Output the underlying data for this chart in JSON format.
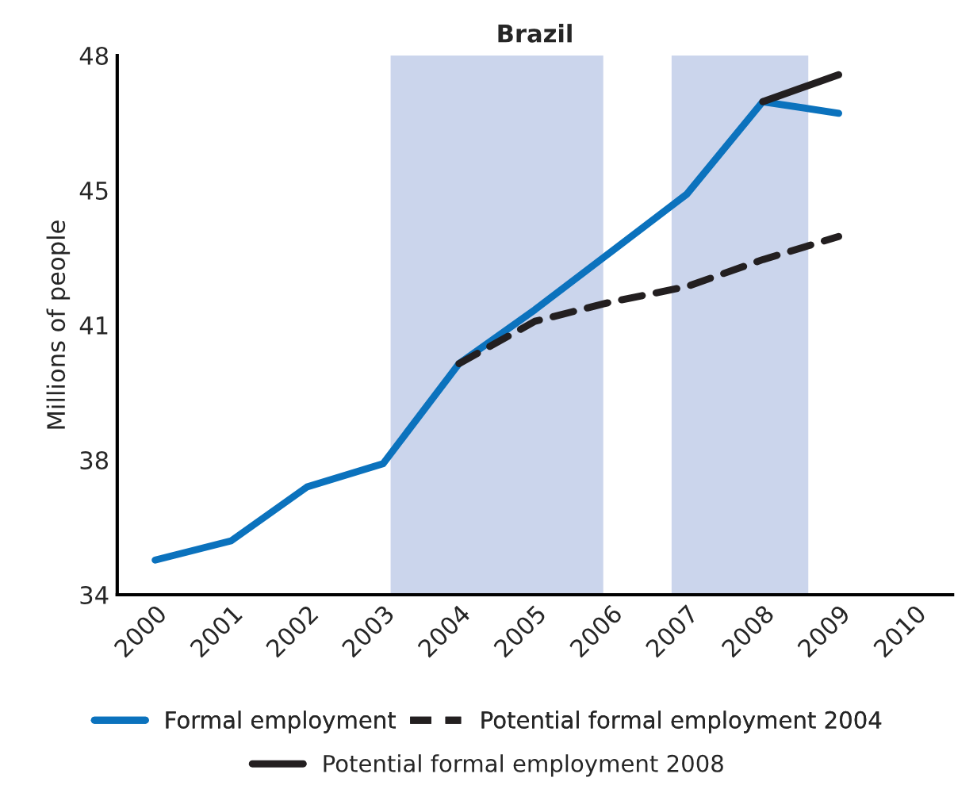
{
  "chart_data": {
    "type": "line",
    "title": "Brazil",
    "ylabel": "Millions of people",
    "xlim": [
      1999.5,
      2010.5
    ],
    "xticks": [
      2000,
      2001,
      2002,
      2003,
      2004,
      2005,
      2006,
      2007,
      2008,
      2009,
      2010
    ],
    "ylim": [
      34,
      48
    ],
    "yticks": [
      34,
      {
        "value": 37.5,
        "label": "38"
      },
      41,
      {
        "value": 44.5,
        "label": "45"
      },
      48
    ],
    "series": [
      {
        "name": "Formal employment",
        "color": "#0b72bd",
        "line_style": "solid",
        "x": [
          2000,
          2001,
          2002,
          2003,
          2004,
          2005,
          2006,
          2007,
          2008,
          2009
        ],
        "values": [
          34.9,
          35.4,
          36.8,
          37.4,
          40.0,
          41.4,
          42.9,
          44.4,
          46.8,
          46.5
        ]
      },
      {
        "name": "Potential formal employment 2004",
        "color": "#231f20",
        "line_style": "dashed",
        "x": [
          2004,
          2005,
          2006,
          2007,
          2008,
          2009
        ],
        "values": [
          40.0,
          41.1,
          41.6,
          42.0,
          42.7,
          43.3
        ]
      },
      {
        "name": "Potential formal employment 2008",
        "color": "#231f20",
        "line_style": "solid",
        "x": [
          2008,
          2009
        ],
        "values": [
          46.8,
          47.5
        ]
      }
    ],
    "bands": [
      {
        "axis": "x",
        "from": 2003.1,
        "to": 2005.9,
        "color": "#cbd5ec"
      },
      {
        "axis": "x",
        "from": 2006.8,
        "to": 2008.6,
        "color": "#cbd5ec"
      }
    ],
    "grid": false,
    "legend": "bottom",
    "marker": "none"
  }
}
